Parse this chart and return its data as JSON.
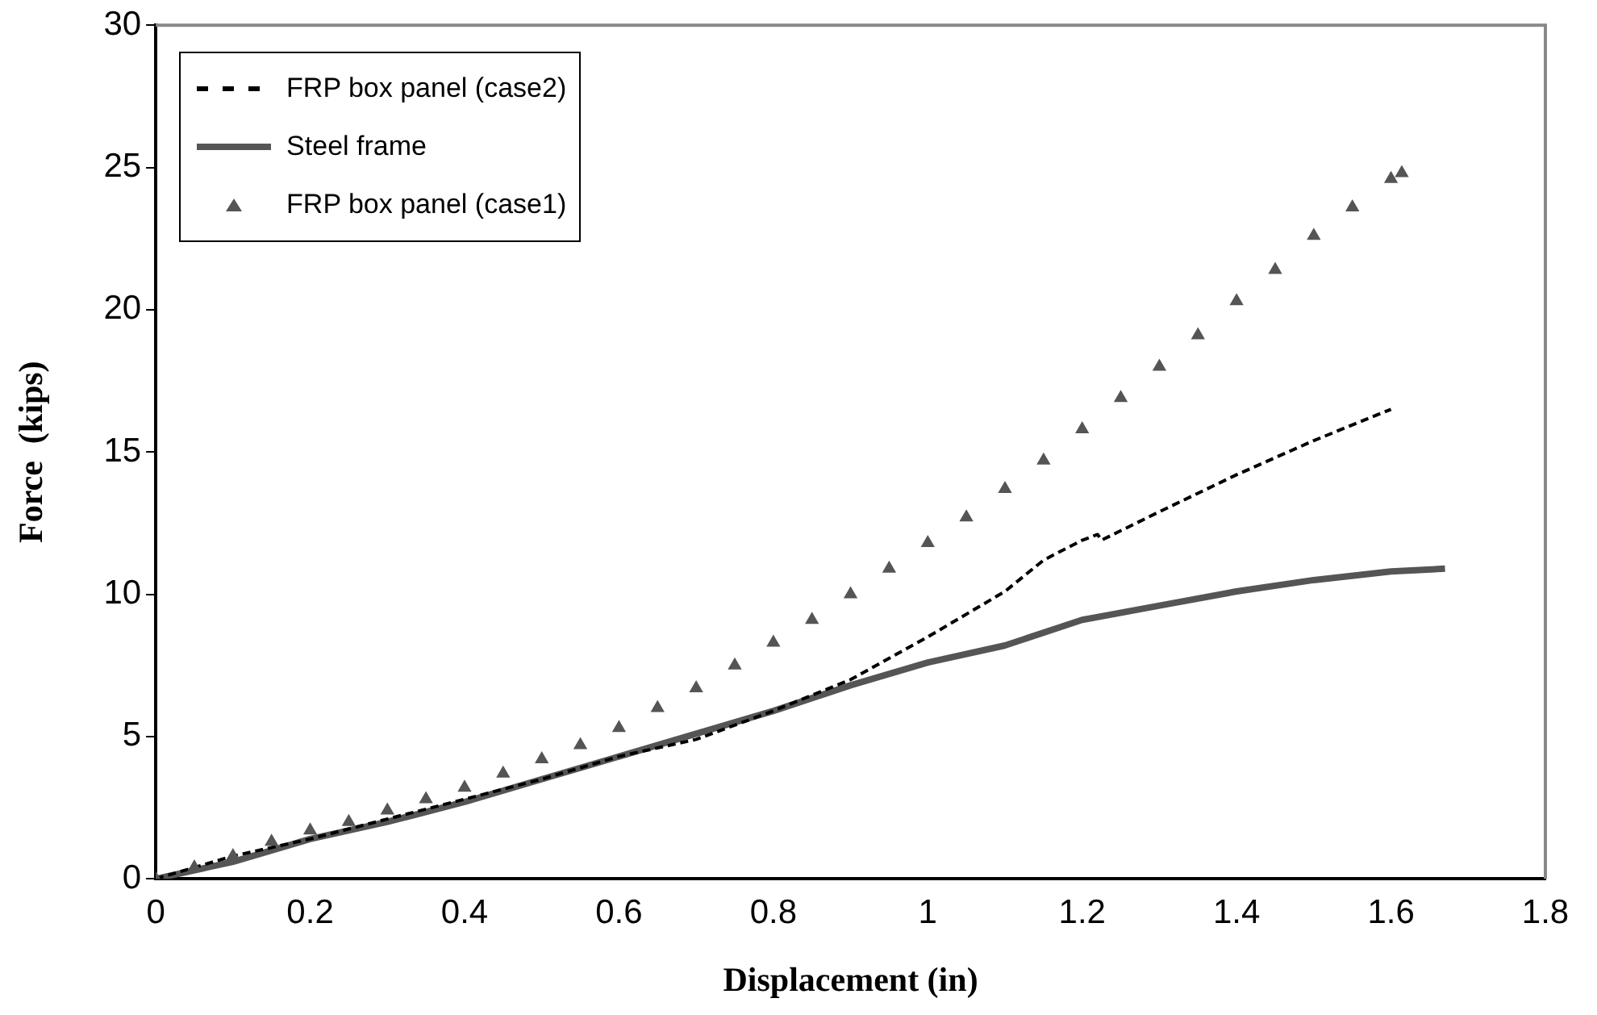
{
  "chart_data": {
    "type": "line",
    "xlabel": "Displacement (in)",
    "ylabel": "Force  (kips)",
    "xlim": [
      0,
      1.8
    ],
    "xticks": [
      0,
      0.2,
      0.4,
      0.6,
      0.8,
      1,
      1.2,
      1.4,
      1.6,
      1.8
    ],
    "ylim": [
      0,
      30
    ],
    "yticks": [
      0,
      5,
      10,
      15,
      20,
      25,
      30
    ],
    "grid": false,
    "legend": "top left",
    "series": [
      {
        "name": "FRP box panel (case2)",
        "line_style": "dashed",
        "marker": "none",
        "color": "#000000",
        "x": [
          0,
          0.1,
          0.2,
          0.3,
          0.4,
          0.5,
          0.6,
          0.7,
          0.8,
          0.9,
          1.0,
          1.1,
          1.15,
          1.2,
          1.22,
          1.225,
          1.3,
          1.4,
          1.5,
          1.6
        ],
        "values": [
          0,
          0.8,
          1.4,
          2.1,
          2.8,
          3.5,
          4.3,
          4.9,
          5.9,
          7.0,
          8.5,
          10.1,
          11.2,
          11.9,
          12.1,
          11.9,
          12.9,
          14.2,
          15.4,
          16.5
        ]
      },
      {
        "name": "Steel frame",
        "line_style": "solid",
        "marker": "none",
        "color": "#555555",
        "x": [
          0,
          0.1,
          0.2,
          0.3,
          0.4,
          0.5,
          0.6,
          0.7,
          0.8,
          0.9,
          1.0,
          1.1,
          1.2,
          1.3,
          1.4,
          1.5,
          1.6,
          1.67
        ],
        "values": [
          0,
          0.6,
          1.4,
          2.0,
          2.7,
          3.5,
          4.3,
          5.1,
          5.9,
          6.8,
          7.6,
          8.2,
          9.1,
          9.6,
          10.1,
          10.5,
          10.8,
          10.9
        ]
      },
      {
        "name": "FRP box panel (case1)",
        "type": "scatter",
        "marker": "triangle",
        "color": "#555555",
        "x": [
          0,
          0.05,
          0.1,
          0.15,
          0.2,
          0.25,
          0.3,
          0.35,
          0.4,
          0.45,
          0.5,
          0.55,
          0.6,
          0.65,
          0.7,
          0.75,
          0.8,
          0.85,
          0.9,
          0.95,
          1.0,
          1.05,
          1.1,
          1.15,
          1.2,
          1.25,
          1.3,
          1.35,
          1.4,
          1.45,
          1.5,
          1.55,
          1.6,
          1.614
        ],
        "values": [
          0,
          0.4,
          0.8,
          1.3,
          1.7,
          2.0,
          2.4,
          2.8,
          3.2,
          3.7,
          4.2,
          4.7,
          5.3,
          6.0,
          6.7,
          7.5,
          8.3,
          9.1,
          10.0,
          10.9,
          11.8,
          12.7,
          13.7,
          14.7,
          15.8,
          16.9,
          18.0,
          19.1,
          20.3,
          21.4,
          22.6,
          23.6,
          24.6,
          24.8
        ]
      }
    ]
  }
}
